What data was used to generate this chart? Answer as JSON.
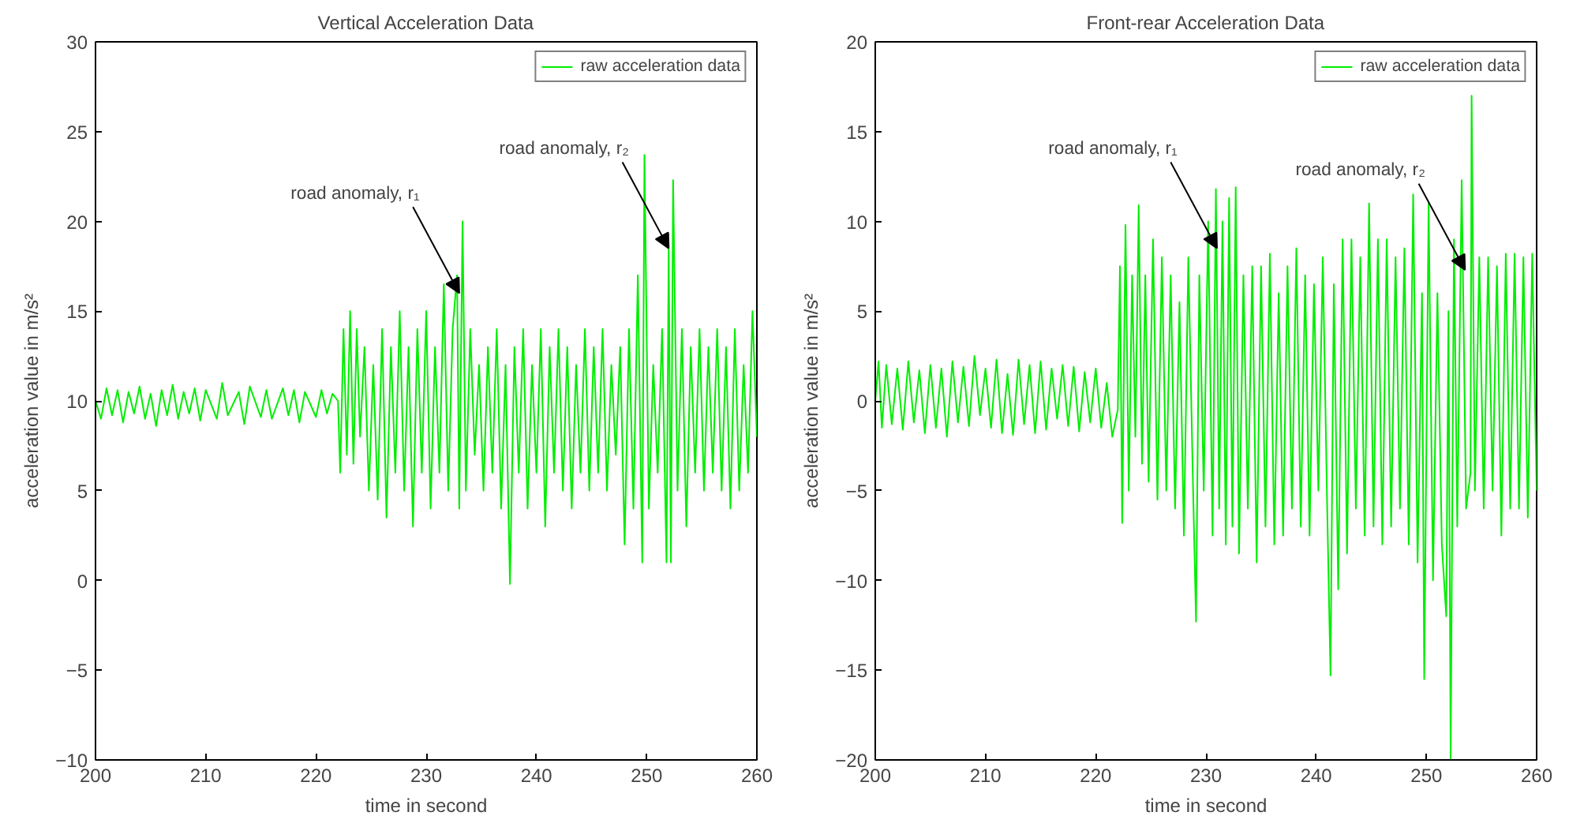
{
  "chart_data": [
    {
      "type": "line",
      "title": "Vertical Acceleration Data",
      "xlabel": "time in second",
      "ylabel": "acceleration value in m/s²",
      "legend": "top right",
      "grid": false,
      "marker": "none",
      "line_style": "solid",
      "xlim": [
        200,
        260
      ],
      "xticks": [
        200,
        210,
        220,
        230,
        240,
        250,
        260
      ],
      "ylim": [
        -10,
        30
      ],
      "yticks": [
        -10,
        -5,
        0,
        5,
        10,
        15,
        20,
        25,
        30
      ],
      "annotations": [
        {
          "text": "road anomaly, r₁",
          "x": 233,
          "y": 16
        },
        {
          "text": "road anomaly, r₂",
          "x": 252,
          "y": 18.5
        }
      ],
      "series": [
        {
          "name": "raw acceleration data",
          "color": "#00ee00",
          "x": [
            200,
            200.5,
            201,
            201.5,
            202,
            202.5,
            203,
            203.5,
            204,
            204.5,
            205,
            205.5,
            206,
            206.5,
            207,
            207.5,
            208,
            208.5,
            209,
            209.5,
            210,
            211,
            211.5,
            212,
            213,
            213.5,
            214,
            215,
            215.5,
            216,
            217,
            217.5,
            218,
            218.5,
            219,
            220,
            220.5,
            221,
            221.5,
            222.0,
            222.2,
            222.5,
            222.8,
            223.1,
            223.4,
            223.7,
            224.0,
            224.4,
            224.8,
            225.2,
            225.6,
            226.0,
            226.4,
            226.8,
            227.2,
            227.6,
            228.0,
            228.4,
            228.8,
            229.2,
            229.6,
            230.0,
            230.4,
            230.8,
            231.2,
            231.6,
            232.0,
            232.4,
            232.8,
            233.0,
            233.3,
            233.6,
            234.0,
            234.4,
            234.8,
            235.2,
            235.6,
            236.0,
            236.4,
            236.8,
            237.2,
            237.6,
            238.0,
            238.4,
            238.8,
            239.2,
            239.6,
            240.0,
            240.4,
            240.8,
            241.2,
            241.6,
            242.0,
            242.4,
            242.8,
            243.2,
            243.6,
            244.0,
            244.4,
            244.8,
            245.2,
            245.6,
            246.0,
            246.4,
            246.8,
            247.2,
            247.6,
            248.0,
            248.4,
            248.8,
            249.2,
            249.6,
            249.8,
            250.2,
            250.6,
            251.0,
            251.4,
            251.8,
            252.0,
            252.2,
            252.4,
            252.8,
            253.2,
            253.6,
            254.0,
            254.4,
            254.8,
            255.2,
            255.6,
            256.0,
            256.4,
            256.8,
            257.2,
            257.6,
            258.0,
            258.4,
            258.8,
            259.2,
            259.6,
            260.0
          ],
          "values": [
            10,
            9,
            10.7,
            9.2,
            10.6,
            8.8,
            10.5,
            9.3,
            10.8,
            9,
            10.4,
            8.6,
            10.6,
            9.2,
            10.9,
            9.0,
            10.5,
            9.3,
            10.7,
            8.9,
            10.6,
            9.0,
            11.0,
            9.2,
            10.5,
            8.7,
            10.8,
            9.1,
            10.6,
            9.0,
            10.7,
            9.2,
            10.6,
            8.8,
            10.5,
            9.1,
            10.6,
            9.3,
            10.4,
            10,
            6,
            14,
            7,
            15,
            6.5,
            14,
            8,
            13,
            5,
            12,
            4.5,
            14,
            3.5,
            13,
            6,
            15,
            5,
            13,
            3,
            14,
            6,
            15,
            4,
            13,
            6,
            16.5,
            5,
            14,
            17,
            4,
            20,
            5,
            14,
            7,
            12,
            5,
            13,
            6,
            14,
            4,
            12,
            -0.2,
            13,
            6,
            14,
            4,
            12,
            6,
            14,
            3,
            13,
            6,
            14,
            5,
            13,
            4,
            12,
            6,
            14,
            5,
            13,
            6,
            14,
            5,
            12,
            7,
            13,
            2,
            14,
            4,
            17,
            1,
            23.7,
            4,
            12,
            6,
            14,
            1,
            18.5,
            1,
            22.3,
            5,
            14,
            3,
            13,
            6,
            14,
            5,
            13,
            6,
            14,
            5,
            13,
            4,
            14,
            5,
            12,
            6,
            15,
            8
          ]
        }
      ]
    },
    {
      "type": "line",
      "title": "Front-rear Acceleration Data",
      "xlabel": "time in second",
      "ylabel": "acceleration value in m/s²",
      "legend": "top right",
      "grid": false,
      "marker": "none",
      "line_style": "solid",
      "xlim": [
        200,
        260
      ],
      "xticks": [
        200,
        210,
        220,
        230,
        240,
        250,
        260
      ],
      "ylim": [
        -20,
        20
      ],
      "yticks": [
        -20,
        -15,
        -10,
        -5,
        0,
        5,
        10,
        15,
        20
      ],
      "annotations": [
        {
          "text": "road anomaly, r₁",
          "x": 231,
          "y": 8.5
        },
        {
          "text": "road anomaly, r₂",
          "x": 253.5,
          "y": 7.3
        }
      ],
      "series": [
        {
          "name": "raw acceleration data",
          "color": "#00ee00",
          "x": [
            200,
            200.3,
            200.6,
            201,
            201.5,
            202,
            202.5,
            203,
            203.5,
            204,
            204.5,
            205,
            205.5,
            206,
            206.5,
            207,
            207.5,
            208,
            208.5,
            209,
            209.5,
            210,
            210.5,
            211,
            211.5,
            212,
            212.5,
            213,
            213.5,
            214,
            214.5,
            215,
            215.5,
            216,
            216.5,
            217,
            217.5,
            218,
            218.5,
            219,
            219.5,
            220,
            220.5,
            221,
            221.5,
            222,
            222.2,
            222.4,
            222.7,
            223.0,
            223.3,
            223.6,
            223.9,
            224.2,
            224.5,
            224.8,
            225.2,
            225.6,
            226.0,
            226.4,
            226.8,
            227.2,
            227.6,
            228.0,
            228.4,
            228.8,
            229.1,
            229.4,
            229.8,
            230.2,
            230.6,
            230.9,
            231.2,
            231.5,
            231.8,
            232.1,
            232.4,
            232.7,
            233.0,
            233.4,
            233.8,
            234.2,
            234.6,
            235.0,
            235.4,
            235.8,
            236.2,
            236.6,
            237.0,
            237.4,
            237.8,
            238.2,
            238.6,
            239.0,
            239.4,
            239.8,
            240.2,
            240.6,
            241.0,
            241.3,
            241.6,
            242.0,
            242.4,
            242.8,
            243.2,
            243.6,
            244.0,
            244.4,
            244.8,
            245.2,
            245.6,
            246.0,
            246.4,
            246.8,
            247.2,
            247.6,
            248.0,
            248.4,
            248.8,
            249.2,
            249.6,
            249.8,
            250.2,
            250.6,
            251.0,
            251.4,
            251.8,
            252.0,
            252.2,
            252.5,
            252.8,
            253.2,
            253.6,
            254.0,
            254.1,
            254.4,
            254.8,
            255.2,
            255.6,
            256.0,
            256.4,
            256.8,
            257.2,
            257.6,
            258.0,
            258.4,
            258.8,
            259.2,
            259.6,
            260
          ],
          "values": [
            0,
            2.2,
            -1.5,
            2,
            -1.3,
            1.8,
            -1.6,
            2.2,
            -1.2,
            1.7,
            -1.8,
            2.0,
            -1.5,
            1.8,
            -2.0,
            2.2,
            -1.2,
            1.9,
            -1.4,
            2.5,
            -0.8,
            1.8,
            -1.5,
            2.3,
            -1.8,
            1.5,
            -1.9,
            2.3,
            -1.3,
            2.0,
            -1.8,
            2.2,
            -1.6,
            1.8,
            -1.0,
            2.0,
            -1.4,
            1.9,
            -1.7,
            1.6,
            -1.2,
            1.8,
            -1.5,
            1.0,
            -2.0,
            -0.5,
            7.5,
            -6.8,
            9.8,
            -5,
            7,
            -2,
            10.9,
            -3.5,
            7,
            -4.5,
            9,
            -5.5,
            8,
            -5,
            7,
            -6,
            5.5,
            -7.5,
            8,
            -4,
            -12.3,
            7,
            -5,
            10,
            -7.5,
            11.8,
            -6,
            10,
            -8,
            11.3,
            -7,
            11.9,
            -8.5,
            7,
            -6,
            7.5,
            -9,
            7.5,
            -7,
            8.2,
            -8,
            6,
            -7.5,
            7.5,
            -6,
            8.5,
            -7,
            7,
            -7.5,
            6.5,
            -5,
            8,
            -6,
            -15.3,
            6.5,
            -10.5,
            9,
            -8.5,
            9,
            -6,
            8,
            -7.5,
            11,
            -7,
            9,
            -8,
            9,
            -7,
            8,
            -6,
            8.5,
            -8,
            11.5,
            -9,
            6,
            -15.5,
            11,
            -10,
            6,
            -8,
            -12,
            5,
            -20,
            9,
            -7,
            12.3,
            -6,
            -4,
            17,
            -5,
            8,
            -6,
            8,
            -5,
            7.5,
            -7.5,
            8.2,
            -6,
            8.2,
            -6,
            8,
            -6.5,
            8.2,
            -5
          ]
        }
      ]
    }
  ]
}
